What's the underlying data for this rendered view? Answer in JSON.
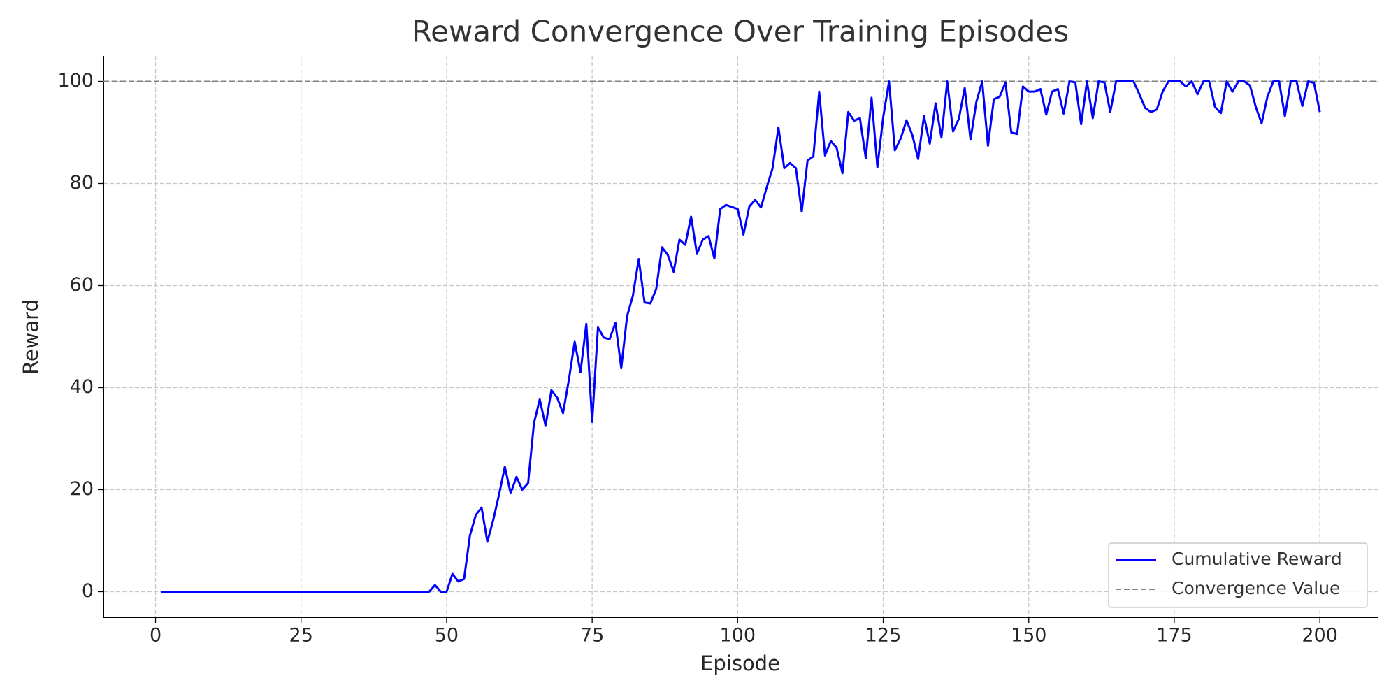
{
  "chart_data": {
    "type": "line",
    "title": "Reward Convergence Over Training Episodes",
    "x_label": "Episode",
    "y_label": "Reward",
    "x": [
      1,
      2,
      3,
      4,
      5,
      6,
      7,
      8,
      9,
      10,
      11,
      12,
      13,
      14,
      15,
      16,
      17,
      18,
      19,
      20,
      21,
      22,
      23,
      24,
      25,
      26,
      27,
      28,
      29,
      30,
      31,
      32,
      33,
      34,
      35,
      36,
      37,
      38,
      39,
      40,
      41,
      42,
      43,
      44,
      45,
      46,
      47,
      48,
      49,
      50,
      51,
      52,
      53,
      54,
      55,
      56,
      57,
      58,
      59,
      60,
      61,
      62,
      63,
      64,
      65,
      66,
      67,
      68,
      69,
      70,
      71,
      72,
      73,
      74,
      75,
      76,
      77,
      78,
      79,
      80,
      81,
      82,
      83,
      84,
      85,
      86,
      87,
      88,
      89,
      90,
      91,
      92,
      93,
      94,
      95,
      96,
      97,
      98,
      99,
      100,
      101,
      102,
      103,
      104,
      105,
      106,
      107,
      108,
      109,
      110,
      111,
      112,
      113,
      114,
      115,
      116,
      117,
      118,
      119,
      120,
      121,
      122,
      123,
      124,
      125,
      126,
      127,
      128,
      129,
      130,
      131,
      132,
      133,
      134,
      135,
      136,
      137,
      138,
      139,
      140,
      141,
      142,
      143,
      144,
      145,
      146,
      147,
      148,
      149,
      150,
      151,
      152,
      153,
      154,
      155,
      156,
      157,
      158,
      159,
      160,
      161,
      162,
      163,
      164,
      165,
      166,
      167,
      168,
      169,
      170,
      171,
      172,
      173,
      174,
      175,
      176,
      177,
      178,
      179,
      180,
      181,
      182,
      183,
      184,
      185,
      186,
      187,
      188,
      189,
      190,
      191,
      192,
      193,
      194,
      195,
      196,
      197,
      198,
      199,
      200
    ],
    "series": [
      {
        "name": "Cumulative Reward",
        "color": "#0000ff",
        "values": [
          0,
          0,
          0,
          0,
          0,
          0,
          0,
          0,
          0,
          0,
          0,
          0,
          0,
          0,
          0,
          0,
          0,
          0,
          0,
          0,
          0,
          0,
          0,
          0,
          0,
          0,
          0,
          0,
          0,
          0,
          0,
          0,
          0,
          0,
          0,
          0,
          0,
          0,
          0,
          0,
          0,
          0,
          0,
          0,
          0,
          0,
          0,
          1.3,
          0,
          0,
          3.5,
          2,
          2.5,
          11,
          15,
          16.5,
          9.8,
          14,
          19,
          24.5,
          19.3,
          22.5,
          20,
          21.3,
          33,
          37.7,
          32.5,
          39.5,
          38,
          35,
          41.5,
          49,
          43,
          52.5,
          33.3,
          51.8,
          49.8,
          49.5,
          52.7,
          43.8,
          54,
          58,
          65.2,
          56.7,
          56.5,
          59.3,
          67.5,
          66,
          62.7,
          69,
          68,
          73.5,
          66.2,
          69,
          69.7,
          65.3,
          75,
          75.8,
          75.4,
          75,
          70,
          75.5,
          76.8,
          75.3,
          79.3,
          83,
          91,
          83,
          84,
          83,
          74.5,
          84.5,
          85.3,
          98,
          85.5,
          88.3,
          87,
          82,
          94,
          92.3,
          92.8,
          85,
          96.8,
          83.2,
          93,
          100,
          86.5,
          88.8,
          92.4,
          89.5,
          84.8,
          93.2,
          87.8,
          95.7,
          89,
          100,
          90.2,
          92.7,
          98.7,
          88.6,
          96,
          100,
          87.4,
          96.5,
          97,
          99.8,
          90,
          89.7,
          99,
          98,
          98,
          98.5,
          93.5,
          98,
          98.5,
          93.7,
          100,
          99.8,
          91.6,
          100,
          92.8,
          100,
          99.8,
          94,
          100,
          100,
          100,
          100,
          97.5,
          94.8,
          94,
          94.5,
          98,
          100,
          100,
          100,
          99,
          100,
          97.5,
          100,
          100,
          95,
          93.8,
          100,
          98,
          100,
          100,
          99.2,
          95,
          91.8,
          97,
          100,
          100,
          93.2,
          100,
          100,
          95.2,
          100,
          99.7,
          94
        ]
      }
    ],
    "reference_line": {
      "name": "Convergence Value",
      "value": 100,
      "color": "#808080"
    },
    "xlim": [
      -8.95,
      209.95
    ],
    "ylim": [
      -5,
      105
    ],
    "xticks": [
      0,
      25,
      50,
      75,
      100,
      125,
      150,
      175,
      200
    ],
    "yticks": [
      0,
      20,
      40,
      60,
      80,
      100
    ],
    "grid": true,
    "legend": "lower right"
  }
}
